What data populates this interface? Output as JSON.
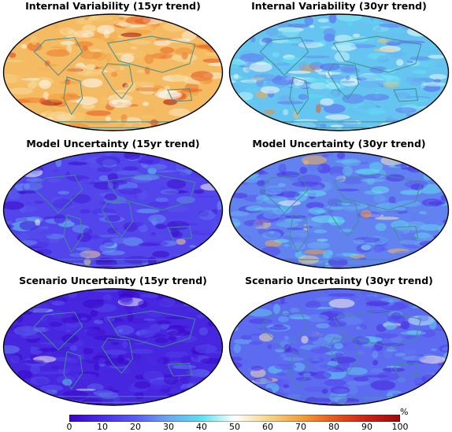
{
  "chart_data": [
    {
      "type": "heatmap",
      "title": "Internal Variability (15yr trend)",
      "map": "world-robinson",
      "dominant_level": 65
    },
    {
      "type": "heatmap",
      "title": "Internal Variability (30yr trend)",
      "map": "world-robinson",
      "dominant_level": 35
    },
    {
      "type": "heatmap",
      "title": "Model Uncertainty (15yr trend)",
      "map": "world-robinson",
      "dominant_level": 15
    },
    {
      "type": "heatmap",
      "title": "Model Uncertainty (30yr trend)",
      "map": "world-robinson",
      "dominant_level": 25
    },
    {
      "type": "heatmap",
      "title": "Scenario Uncertainty (15yr trend)",
      "map": "world-robinson",
      "dominant_level": 8
    },
    {
      "type": "heatmap",
      "title": "Scenario Uncertainty (30yr trend)",
      "map": "world-robinson",
      "dominant_level": 22
    }
  ],
  "colorbar": {
    "min": 0,
    "max": 100,
    "unit": "%",
    "ticks": [
      "0",
      "10",
      "20",
      "30",
      "40",
      "50",
      "60",
      "70",
      "80",
      "90",
      "100"
    ],
    "colors": [
      "#3a05c8",
      "#4a2ee6",
      "#5a5cf0",
      "#6aa8f0",
      "#5fe0f0",
      "#ffffff",
      "#f5d58a",
      "#f2a03c",
      "#e6561e",
      "#cc2216",
      "#9c0a0a"
    ]
  }
}
